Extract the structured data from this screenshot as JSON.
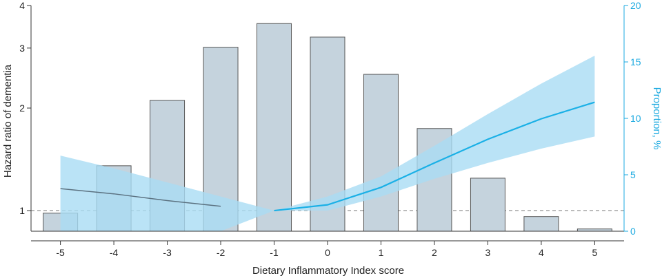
{
  "chart_data": {
    "type": "bar+line",
    "x_label": "Dietary Inflammatory Index score",
    "left_label": "Hazard ratio of dementia",
    "right_label": "Proportion, %",
    "categories": [
      "-5",
      "-4",
      "-3",
      "-2",
      "-1",
      "0",
      "1",
      "2",
      "3",
      "4",
      "5"
    ],
    "x": [
      -5,
      -4,
      -3,
      -2,
      -1,
      0,
      1,
      2,
      3,
      4,
      5
    ],
    "bars": {
      "axis": "right",
      "values": [
        1.6,
        5.8,
        11.6,
        16.3,
        18.4,
        17.2,
        13.9,
        9.1,
        4.7,
        1.3,
        0.2
      ]
    },
    "left_axis": {
      "scale": "log",
      "ylim": [
        0.87,
        4
      ],
      "ticks": [
        1,
        2,
        3,
        4
      ],
      "tick_labels": [
        "1",
        "2",
        "3",
        "4"
      ],
      "reference_line": 1
    },
    "right_axis": {
      "ylim": [
        0,
        20
      ],
      "ticks": [
        0,
        5,
        10,
        15,
        20
      ],
      "tick_labels": [
        "0",
        "5",
        "10",
        "15",
        "20"
      ]
    },
    "hr_curve": {
      "axis": "left",
      "x": [
        -5,
        -4,
        -3,
        -2,
        -1,
        0,
        1,
        2,
        3,
        4,
        5
      ],
      "y": [
        1.16,
        1.12,
        1.07,
        1.03,
        1.0,
        1.04,
        1.17,
        1.38,
        1.62,
        1.86,
        2.08
      ],
      "ci_lower": [
        null,
        null,
        null,
        null,
        null,
        1.0,
        1.1,
        1.24,
        1.38,
        1.52,
        1.65
      ],
      "ci_upper": [
        null,
        null,
        null,
        null,
        null,
        1.1,
        1.26,
        1.55,
        1.92,
        2.36,
        2.85
      ]
    },
    "low_band": {
      "axis": "left",
      "x": [
        -5,
        -4,
        -3,
        -2,
        -1
      ],
      "ci_lower": [
        0.87,
        0.87,
        0.87,
        0.87,
        1.0
      ],
      "ci_upper": [
        1.45,
        1.33,
        1.21,
        1.1,
        1.0
      ]
    },
    "colors": {
      "bar_fill": "#c5d3dd",
      "bar_stroke": "#555555",
      "line": "#1ab0e6",
      "ci_band": "#a9dcf4",
      "low_line": "#5b7180",
      "axis": "#333333",
      "right_axis": "#1aa9e0",
      "reference": "#777777"
    }
  }
}
